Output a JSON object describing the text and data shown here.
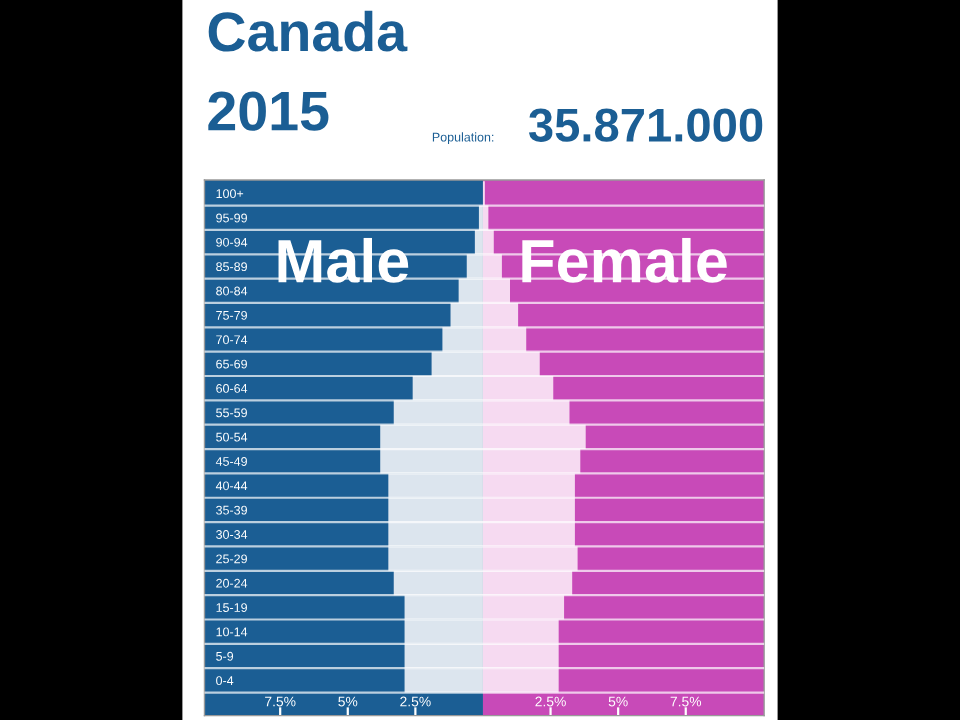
{
  "chart_data": {
    "type": "bar",
    "orientation": "horizontal",
    "title": "Canada",
    "subtitle": "2015",
    "annotations": [
      "Population:",
      "35.871.000"
    ],
    "categories": [
      "100+",
      "95-99",
      "90-94",
      "85-89",
      "80-84",
      "75-79",
      "70-74",
      "65-69",
      "60-64",
      "55-59",
      "50-54",
      "45-49",
      "40-44",
      "35-39",
      "30-34",
      "25-29",
      "20-24",
      "15-19",
      "10-14",
      "5-9",
      "0-4"
    ],
    "series": [
      {
        "name": "Male",
        "color": "#dce5ee",
        "values": [
          0.0,
          -0.15,
          -0.3,
          -0.6,
          -0.9,
          -1.2,
          -1.5,
          -1.9,
          -2.6,
          -3.3,
          -3.8,
          -3.8,
          -3.5,
          -3.5,
          -3.5,
          -3.5,
          -3.3,
          -2.9,
          -2.9,
          -2.9,
          -2.9
        ]
      },
      {
        "name": "Female",
        "color": "#f6daf1",
        "values": [
          0.07,
          0.2,
          0.4,
          0.7,
          1.0,
          1.3,
          1.6,
          2.1,
          2.6,
          3.2,
          3.8,
          3.6,
          3.4,
          3.4,
          3.4,
          3.5,
          3.3,
          3.0,
          2.8,
          2.8,
          2.8
        ]
      }
    ],
    "bands": [
      {
        "axis": "x",
        "from": -10.3,
        "to": 0,
        "color": "#1b5e94"
      },
      {
        "axis": "x",
        "from": 0,
        "to": 10.4,
        "color": "#c84ab8"
      }
    ],
    "xlim": [
      -10.3,
      10.4
    ],
    "xticks": [
      {
        "value": -7.5,
        "label": "7.5%"
      },
      {
        "value": -5,
        "label": "5%"
      },
      {
        "value": -2.5,
        "label": "2.5%"
      },
      {
        "value": 2.5,
        "label": "2.5%"
      },
      {
        "value": 5,
        "label": "5%"
      },
      {
        "value": 7.5,
        "label": "7.5%"
      }
    ],
    "stacked": true,
    "grid": "y",
    "legend": false
  }
}
